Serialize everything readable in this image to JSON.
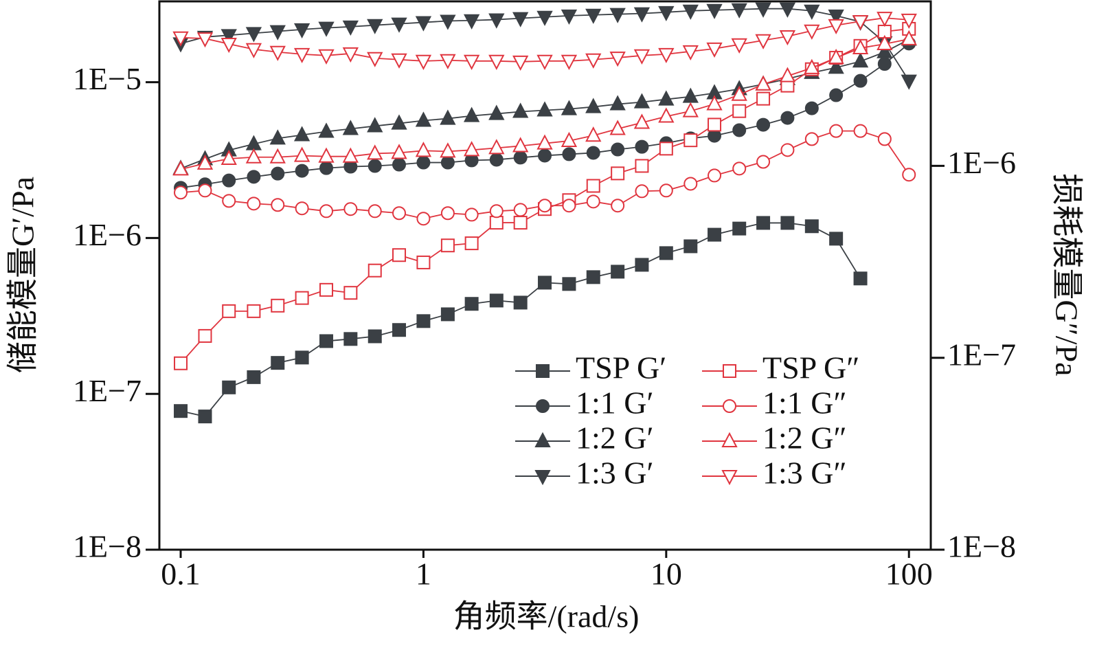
{
  "chart_data": {
    "type": "line",
    "xlabel": "角频率/(rad/s)",
    "ylabel": "储能模量G′/Pa",
    "y2label": "损耗模量G″/Pa",
    "x_log": true,
    "y_log": true,
    "y2_log": true,
    "legend": "lower right",
    "xlim": [
      0.0817,
      123
    ],
    "ylim": [
      1e-08,
      3.3e-05
    ],
    "y2lim": [
      1e-08,
      7.2e-06
    ],
    "xticks": [
      0.1,
      1,
      10,
      100
    ],
    "yticks": [
      {
        "value": 1e-08,
        "label": "1E−8"
      },
      {
        "value": 1e-07,
        "label": "1E−7"
      },
      {
        "value": 1e-06,
        "label": "1E−6"
      },
      {
        "value": 1e-05,
        "label": "1E−5"
      }
    ],
    "y2ticks": [
      {
        "value": 1e-08,
        "label": "1E−8"
      },
      {
        "value": 1e-07,
        "label": "1E−7"
      },
      {
        "value": 1e-06,
        "label": "1E−6"
      }
    ],
    "x": [
      0.1,
      0.126,
      0.158,
      0.2,
      0.251,
      0.316,
      0.398,
      0.501,
      0.631,
      0.794,
      1,
      1.26,
      1.58,
      2,
      2.51,
      3.16,
      3.98,
      5.01,
      6.31,
      7.94,
      10,
      12.6,
      15.8,
      20,
      25.1,
      31.6,
      39.8,
      50.1,
      63.1,
      79.4,
      100
    ],
    "series": [
      {
        "name": "TSP G′",
        "color": "#3b4045",
        "marker": "square",
        "filled": true,
        "axis": "y",
        "values": [
          7.76e-08,
          7.16e-08,
          1.1e-07,
          1.28e-07,
          1.58e-07,
          1.71e-07,
          2.18e-07,
          2.25e-07,
          2.34e-07,
          2.57e-07,
          2.93e-07,
          3.24e-07,
          3.78e-07,
          3.97e-07,
          3.85e-07,
          5.17e-07,
          5.07e-07,
          5.61e-07,
          6.08e-07,
          6.73e-07,
          8e-07,
          8.85e-07,
          1.05e-06,
          1.15e-06,
          1.25e-06,
          1.25e-06,
          1.19e-06,
          9.9e-07,
          5.5e-07,
          null,
          null
        ]
      },
      {
        "name": "1:1 G′",
        "color": "#3b4045",
        "marker": "circle",
        "filled": true,
        "axis": "y",
        "values": [
          2.1e-06,
          2.21e-06,
          2.34e-06,
          2.47e-06,
          2.59e-06,
          2.7e-06,
          2.81e-06,
          2.87e-06,
          2.9e-06,
          2.96e-06,
          3.05e-06,
          3.05e-06,
          3.15e-06,
          3.18e-06,
          3.28e-06,
          3.38e-06,
          3.45e-06,
          3.52e-06,
          3.7e-06,
          3.85e-06,
          4.06e-06,
          4.36e-06,
          4.53e-06,
          4.92e-06,
          5.33e-06,
          5.9e-06,
          6.8e-06,
          8.25e-06,
          1.02e-05,
          1.31e-05,
          1.77e-05
        ]
      },
      {
        "name": "1:2 G′",
        "color": "#3b4045",
        "marker": "triangle-up",
        "filled": true,
        "axis": "y",
        "values": [
          2.79e-06,
          3.21e-06,
          3.66e-06,
          4.01e-06,
          4.36e-06,
          4.58e-06,
          4.82e-06,
          5.02e-06,
          5.23e-06,
          5.44e-06,
          5.67e-06,
          5.84e-06,
          6.08e-06,
          6.27e-06,
          6.47e-06,
          6.6e-06,
          6.73e-06,
          6.94e-06,
          7.23e-06,
          7.45e-06,
          7.76e-06,
          8.08e-06,
          8.51e-06,
          9.04e-06,
          9.7e-06,
          1.05e-05,
          1.15e-05,
          1.24e-05,
          1.36e-05,
          1.56e-05,
          1.88e-05
        ]
      },
      {
        "name": "1:3 G′",
        "color": "#3b4045",
        "marker": "triangle-down",
        "filled": true,
        "axis": "y",
        "values": [
          1.77e-05,
          1.95e-05,
          2e-05,
          2.06e-05,
          2.12e-05,
          2.18e-05,
          2.23e-05,
          2.27e-05,
          2.32e-05,
          2.37e-05,
          2.42e-05,
          2.47e-05,
          2.49e-05,
          2.52e-05,
          2.57e-05,
          2.62e-05,
          2.67e-05,
          2.7e-05,
          2.73e-05,
          2.76e-05,
          2.81e-05,
          2.87e-05,
          2.9e-05,
          2.93e-05,
          2.96e-05,
          2.96e-05,
          2.87e-05,
          2.67e-05,
          2.44e-05,
          1.8e-05,
          1.02e-05
        ]
      },
      {
        "name": "TSP G″",
        "color": "#e0353f",
        "marker": "square",
        "filled": false,
        "axis": "y2",
        "values": [
          9.36e-08,
          1.3e-07,
          1.75e-07,
          1.75e-07,
          1.87e-07,
          2.05e-07,
          2.26e-07,
          2.18e-07,
          2.85e-07,
          3.43e-07,
          3.14e-07,
          3.85e-07,
          3.95e-07,
          5.06e-07,
          5.06e-07,
          5.96e-07,
          6.63e-07,
          7.87e-07,
          9.14e-07,
          1e-06,
          1.23e-06,
          1.36e-06,
          1.64e-06,
          1.93e-06,
          2.24e-06,
          2.62e-06,
          3.19e-06,
          3.66e-06,
          4.22e-06,
          5.01e-06,
          5.18e-06
        ]
      },
      {
        "name": "1:1 G″",
        "color": "#e0353f",
        "marker": "circle",
        "filled": false,
        "axis": "y2",
        "values": [
          7.26e-07,
          7.44e-07,
          6.57e-07,
          6.36e-07,
          6.26e-07,
          6.01e-07,
          5.81e-07,
          5.96e-07,
          5.81e-07,
          5.67e-07,
          5.31e-07,
          5.67e-07,
          5.57e-07,
          5.81e-07,
          5.9e-07,
          6.21e-07,
          6.21e-07,
          6.52e-07,
          6.21e-07,
          7.38e-07,
          7.44e-07,
          8.07e-07,
          8.91e-07,
          9.68e-07,
          1.05e-06,
          1.21e-06,
          1.38e-06,
          1.52e-06,
          1.52e-06,
          1.38e-06,
          9e-07
        ]
      },
      {
        "name": "1:2 G″",
        "color": "#e0353f",
        "marker": "triangle-up",
        "filled": false,
        "axis": "y2",
        "values": [
          9.6e-07,
          1.03e-06,
          1.09e-06,
          1.11e-06,
          1.11e-06,
          1.13e-06,
          1.12e-06,
          1.12e-06,
          1.16e-06,
          1.17e-06,
          1.2e-06,
          1.19e-06,
          1.21e-06,
          1.24e-06,
          1.27e-06,
          1.31e-06,
          1.35e-06,
          1.44e-06,
          1.56e-06,
          1.68e-06,
          1.81e-06,
          1.93e-06,
          2.1e-06,
          2.35e-06,
          2.66e-06,
          2.94e-06,
          3.24e-06,
          3.66e-06,
          4.11e-06,
          4.32e-06,
          4.58e-06
        ]
      },
      {
        "name": "1:3 G″",
        "color": "#e0353f",
        "marker": "triangle-down",
        "filled": false,
        "axis": "y2",
        "values": [
          4.66e-06,
          4.61e-06,
          4.32e-06,
          4.05e-06,
          3.92e-06,
          3.82e-06,
          3.76e-06,
          3.85e-06,
          3.64e-06,
          3.58e-06,
          3.52e-06,
          3.55e-06,
          3.52e-06,
          3.52e-06,
          3.49e-06,
          3.52e-06,
          3.52e-06,
          3.58e-06,
          3.66e-06,
          3.76e-06,
          3.82e-06,
          3.95e-06,
          4.08e-06,
          4.29e-06,
          4.51e-06,
          4.73e-06,
          5.06e-06,
          5.4e-06,
          5.67e-06,
          5.9e-06,
          5.77e-06
        ]
      }
    ]
  }
}
